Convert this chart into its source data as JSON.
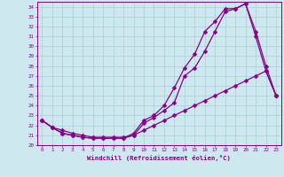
{
  "xlabel": "Windchill (Refroidissement éolien,°C)",
  "background_color": "#cde8ee",
  "grid_color": "#a8cdd4",
  "line_color": "#880088",
  "markersize": 2.5,
  "linewidth": 0.9,
  "xlim": [
    -0.5,
    23.5
  ],
  "ylim": [
    20,
    34.5
  ],
  "xticks": [
    0,
    1,
    2,
    3,
    4,
    5,
    6,
    7,
    8,
    9,
    10,
    11,
    12,
    13,
    14,
    15,
    16,
    17,
    18,
    19,
    20,
    21,
    22,
    23
  ],
  "yticks": [
    20,
    21,
    22,
    23,
    24,
    25,
    26,
    27,
    28,
    29,
    30,
    31,
    32,
    33,
    34
  ],
  "series1_x": [
    0,
    1,
    2,
    3,
    4,
    5,
    6,
    7,
    8,
    9,
    10,
    11,
    12,
    13,
    14,
    15,
    16,
    17,
    18,
    19,
    20,
    21,
    22,
    23
  ],
  "series1_y": [
    22.5,
    21.8,
    21.2,
    21.0,
    20.8,
    20.7,
    20.7,
    20.7,
    20.7,
    21.0,
    22.2,
    22.8,
    23.5,
    24.3,
    27.0,
    27.8,
    29.5,
    31.5,
    33.5,
    33.8,
    34.3,
    31.0,
    27.5,
    25.0
  ],
  "series2_x": [
    0,
    1,
    2,
    3,
    4,
    5,
    6,
    7,
    8,
    9,
    10,
    11,
    12,
    13,
    14,
    15,
    16,
    17,
    18,
    19,
    20,
    21,
    22,
    23
  ],
  "series2_y": [
    22.5,
    21.8,
    21.2,
    21.0,
    20.8,
    20.7,
    20.7,
    20.7,
    20.7,
    21.2,
    22.5,
    23.0,
    24.0,
    25.8,
    27.8,
    29.2,
    31.5,
    32.5,
    33.8,
    33.8,
    34.3,
    31.5,
    28.0,
    25.0
  ],
  "series3_x": [
    0,
    1,
    2,
    3,
    4,
    5,
    6,
    7,
    8,
    9,
    10,
    11,
    12,
    13,
    14,
    15,
    16,
    17,
    18,
    19,
    20,
    21,
    22,
    23
  ],
  "series3_y": [
    22.5,
    21.8,
    21.5,
    21.2,
    21.0,
    20.8,
    20.8,
    20.8,
    20.8,
    21.0,
    21.5,
    22.0,
    22.5,
    23.0,
    23.5,
    24.0,
    24.5,
    25.0,
    25.5,
    26.0,
    26.5,
    27.0,
    27.5,
    25.0
  ]
}
